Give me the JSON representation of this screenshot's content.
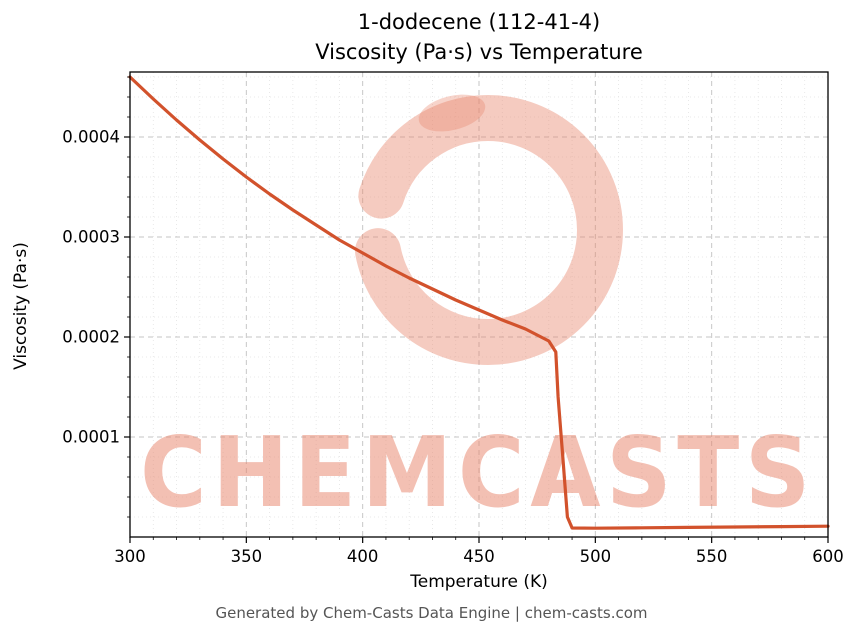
{
  "chart_data": {
    "type": "line",
    "title": "1-dodecene (112-41-4)",
    "subtitle": "Viscosity (Pa·s) vs Temperature",
    "xlabel": "Temperature (K)",
    "ylabel": "Viscosity (Pa·s)",
    "footer": "Generated by Chem-Casts Data Engine | chem-casts.com",
    "xlim": [
      300,
      600
    ],
    "ylim": [
      0,
      0.000465
    ],
    "x_ticks": [
      300,
      350,
      400,
      450,
      500,
      550,
      600
    ],
    "x_tick_labels": [
      "300",
      "350",
      "400",
      "450",
      "500",
      "550",
      "600"
    ],
    "y_ticks": [
      0.0001,
      0.0002,
      0.0003,
      0.0004
    ],
    "y_tick_labels": [
      "0.0001",
      "0.0002",
      "0.0003",
      "0.0004"
    ],
    "x_minor_step": 10,
    "y_minor_step": 2e-05,
    "grid": true,
    "legend": false,
    "line_color": "#d2522c",
    "watermark": {
      "text": "CHEMCASTS",
      "color": "#e8836a"
    },
    "series": [
      {
        "name": "Viscosity (Pa·s)",
        "x": [
          300,
          310,
          320,
          330,
          340,
          350,
          360,
          370,
          380,
          390,
          400,
          410,
          420,
          430,
          440,
          450,
          460,
          470,
          480,
          483,
          484,
          486,
          488,
          490,
          500,
          520,
          540,
          560,
          580,
          600
        ],
        "y": [
          0.00046,
          0.000438,
          0.000417,
          0.000397,
          0.000378,
          0.00036,
          0.000343,
          0.000327,
          0.000312,
          0.000297,
          0.000284,
          0.000271,
          0.000259,
          0.000248,
          0.000237,
          0.000227,
          0.000217,
          0.000208,
          0.000196,
          0.000185,
          0.00014,
          8e-05,
          2e-05,
          9e-06,
          8.8e-06,
          9.2e-06,
          9.6e-06,
          1e-05,
          1.04e-05,
          1.08e-05
        ]
      }
    ]
  }
}
